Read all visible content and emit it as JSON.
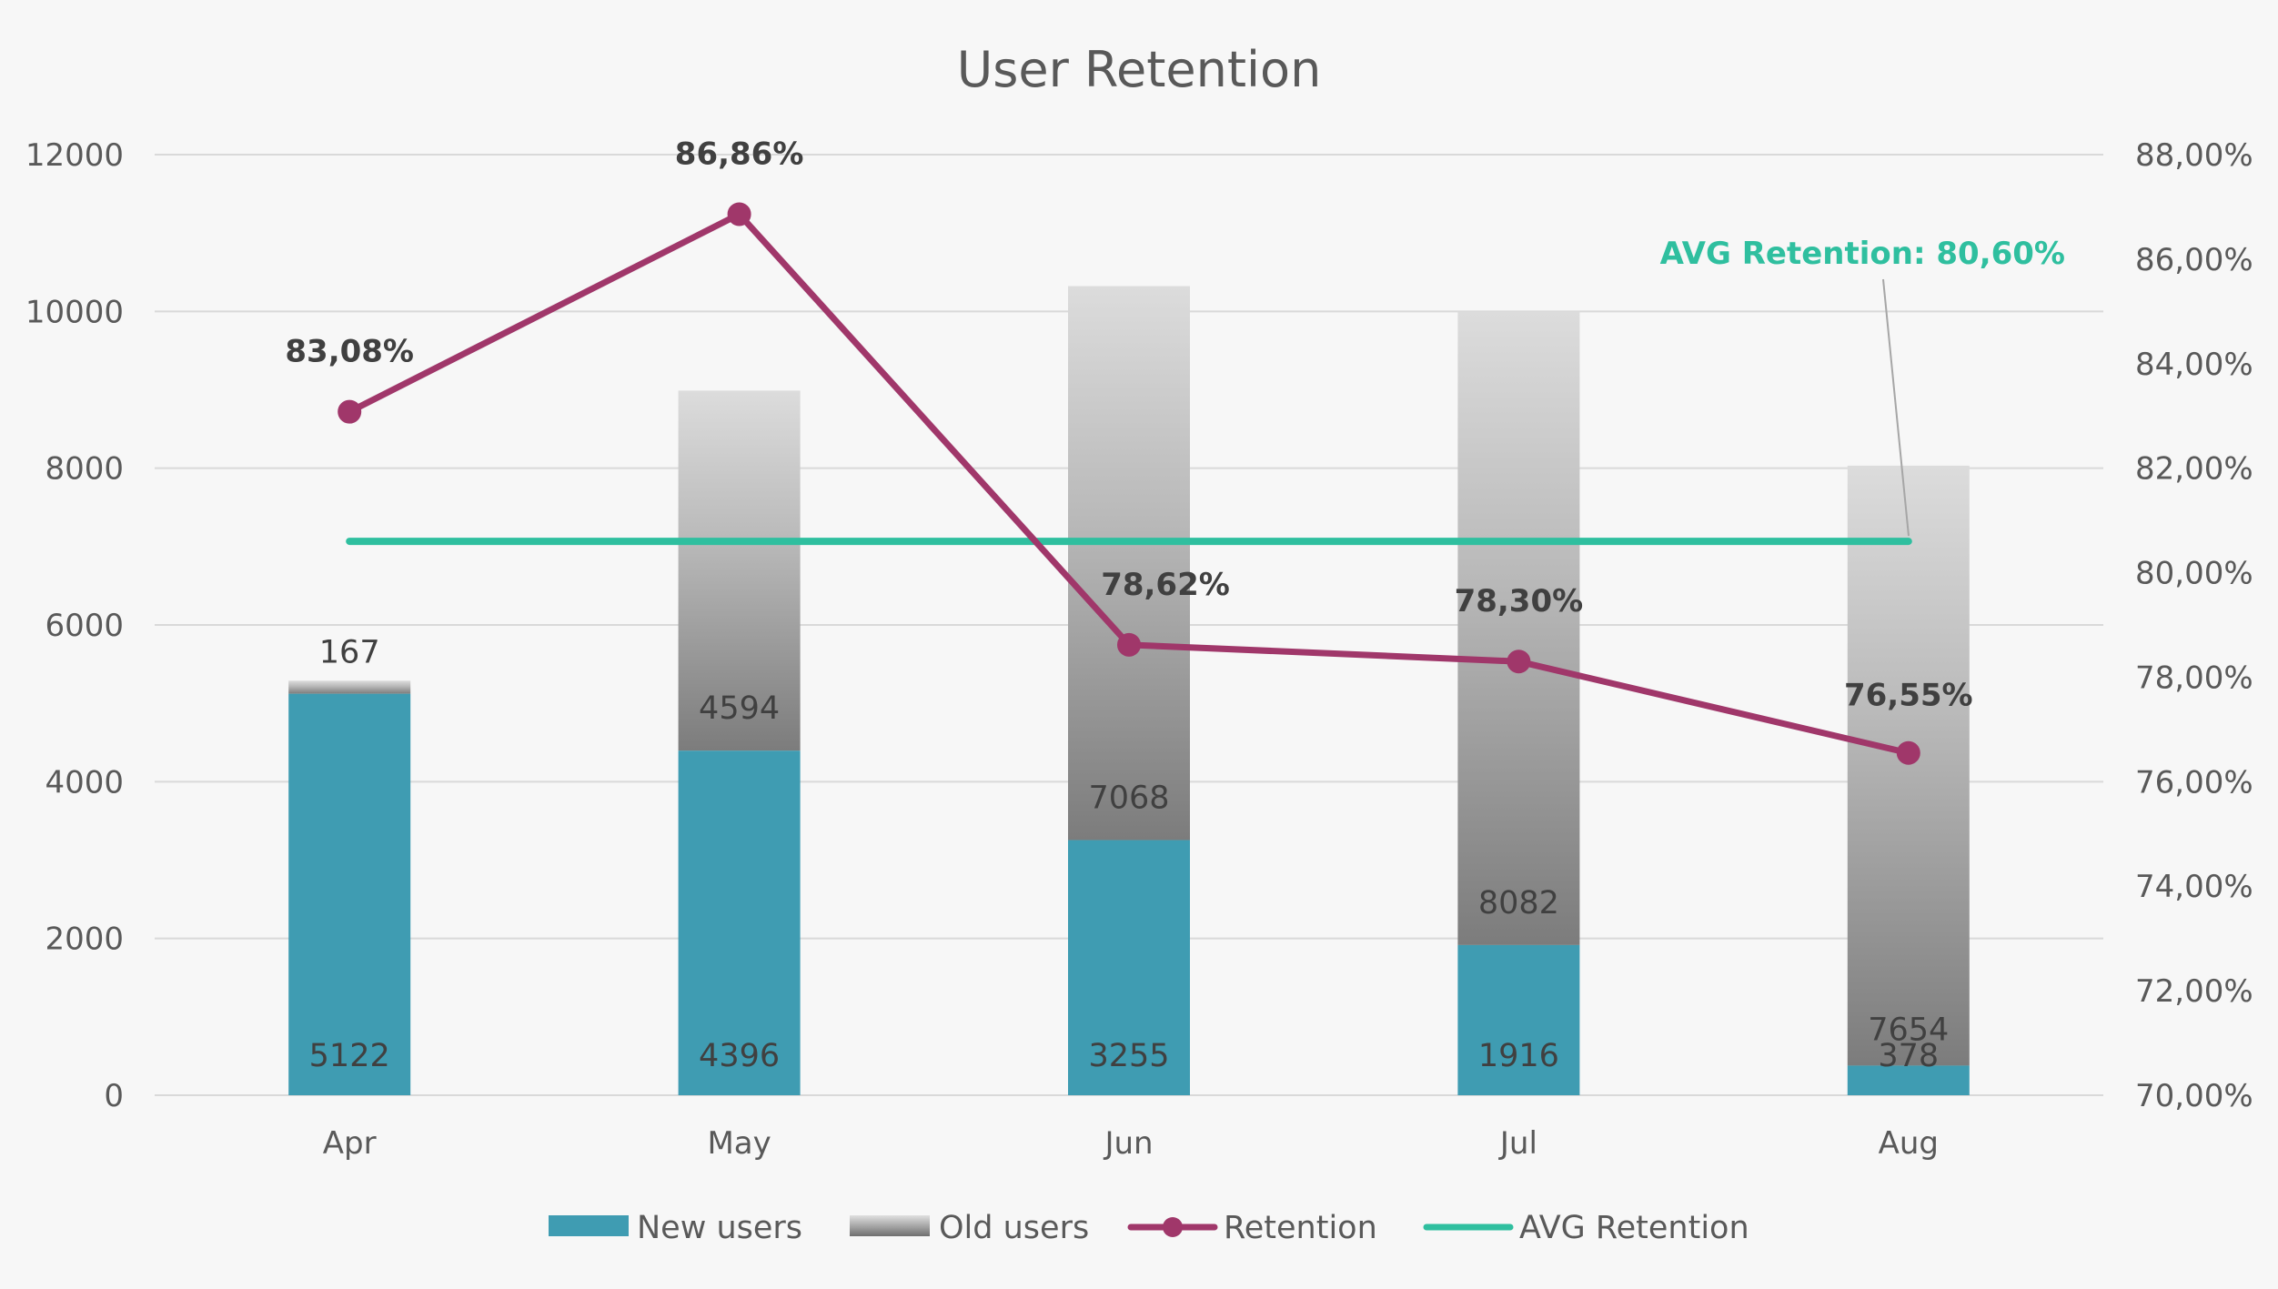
{
  "chart_data": {
    "type": "bar",
    "title": "User Retention",
    "categories": [
      "Apr",
      "May",
      "Jun",
      "Jul",
      "Aug"
    ],
    "series": [
      {
        "name": "New users",
        "type": "bar",
        "stack": "users",
        "values": [
          5122,
          4396,
          3255,
          1916,
          378
        ],
        "labels": [
          "5122",
          "4396",
          "3255",
          "1916",
          "378"
        ],
        "color": "#3f9cb2"
      },
      {
        "name": "Old users",
        "type": "bar",
        "stack": "users",
        "values": [
          167,
          4594,
          7068,
          8082,
          7654
        ],
        "labels": [
          "167",
          "4594",
          "7068",
          "8082",
          "7654"
        ],
        "color_top": "#d9d9d9",
        "color_bottom": "#7f7f7f"
      },
      {
        "name": "Retention",
        "type": "line",
        "axis": "right",
        "values": [
          83.08,
          86.86,
          78.62,
          78.3,
          76.55
        ],
        "labels": [
          "83,08%",
          "86,86%",
          "78,62%",
          "78,30%",
          "76,55%"
        ],
        "color": "#a0376a"
      },
      {
        "name": "AVG Retention",
        "type": "line",
        "axis": "right",
        "values": [
          80.6,
          80.6,
          80.6,
          80.6,
          80.6
        ],
        "color": "#2fbf9f"
      }
    ],
    "avg_annotation": "AVG Retention: 80,60%",
    "y_left": {
      "min": 0,
      "max": 12000,
      "ticks": [
        "0",
        "2000",
        "4000",
        "6000",
        "8000",
        "10000",
        "12000"
      ]
    },
    "y_right": {
      "min": 70,
      "max": 88,
      "ticks": [
        "70,00%",
        "72,00%",
        "74,00%",
        "76,00%",
        "78,00%",
        "80,00%",
        "82,00%",
        "84,00%",
        "86,00%",
        "88,00%"
      ]
    },
    "grid": true,
    "legend": "bottom",
    "grid_color": "#d9d9d9"
  }
}
